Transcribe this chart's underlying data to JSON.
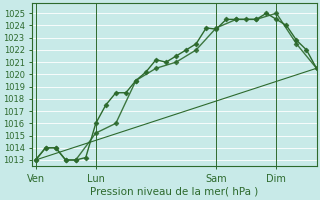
{
  "background_color": "#c8eae8",
  "grid_color": "#ffffff",
  "line_color": "#2d6a2d",
  "xlabel": "Pression niveau de la mer( hPa )",
  "ylim": [
    1012.5,
    1025.8
  ],
  "yticks": [
    1013,
    1014,
    1015,
    1016,
    1017,
    1018,
    1019,
    1020,
    1021,
    1022,
    1023,
    1024,
    1025
  ],
  "xtick_labels": [
    "Ven",
    "Lun",
    "Sam",
    "Dim"
  ],
  "xtick_positions": [
    0,
    36,
    108,
    144
  ],
  "vline_positions": [
    0,
    36,
    108,
    144
  ],
  "xlim": [
    -2,
    168
  ],
  "series1_x": [
    0,
    6,
    12,
    18,
    24,
    30,
    36,
    42,
    48,
    54,
    60,
    66,
    72,
    78,
    84,
    90,
    96,
    102,
    108,
    114,
    120,
    126,
    132,
    138,
    144,
    150,
    156,
    162,
    168
  ],
  "series1_y": [
    1013.0,
    1014.0,
    1014.0,
    1013.0,
    1013.0,
    1013.2,
    1016.0,
    1017.5,
    1018.5,
    1018.5,
    1019.5,
    1020.2,
    1021.2,
    1021.0,
    1021.5,
    1022.0,
    1022.5,
    1023.8,
    1023.7,
    1024.5,
    1024.5,
    1024.5,
    1024.5,
    1025.0,
    1024.5,
    1024.0,
    1022.8,
    1022.0,
    1020.5
  ],
  "series2_x": [
    0,
    6,
    12,
    18,
    24,
    36,
    48,
    60,
    72,
    84,
    96,
    108,
    120,
    132,
    144,
    156,
    168
  ],
  "series2_y": [
    1013.0,
    1014.0,
    1014.0,
    1013.0,
    1013.0,
    1015.2,
    1016.0,
    1019.5,
    1020.5,
    1021.0,
    1022.0,
    1023.8,
    1024.5,
    1024.5,
    1025.0,
    1022.5,
    1020.5
  ],
  "series3_x": [
    0,
    168
  ],
  "series3_y": [
    1013.0,
    1020.5
  ],
  "marker": "D",
  "markersize": 2.5,
  "linewidth": 1.0
}
